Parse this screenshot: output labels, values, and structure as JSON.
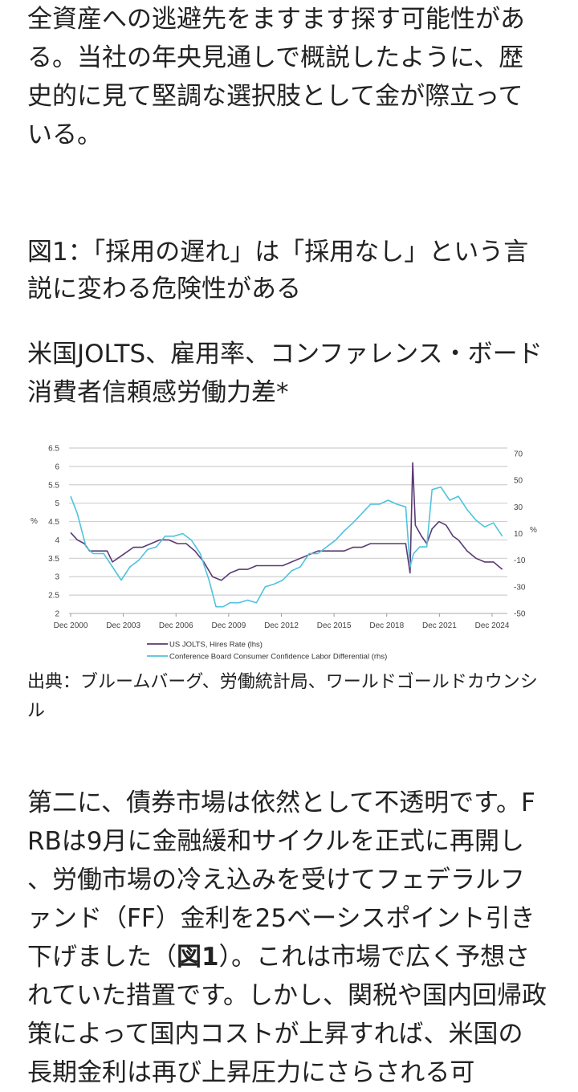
{
  "article": {
    "paragraph1": "全資産への逃避先をますます探す可能性がある。当社の年央見通しで概説したように、歴史的に見て堅調な選択肢として金が際立っている。",
    "figure_label": "図1",
    "figure_title": "：「採用の遅れ」は「採用なし」という言説に変わる危険性がある",
    "chart_subtitle": "米国JOLTS、雇用率、コンファレンス・ボード消費者信頼感労働力差*",
    "source": "出典：ブルームバーグ、労働統計局、ワールドゴールドカウンシル",
    "paragraph2_a": "第二に、債券市場は依然として不透明です。FRBは9月に金融緩和サイクルを正式に再開し、労働市場の冷え込みを受けてフェデラルファンド（FF）金利を25ベーシスポイント引き下げました（",
    "paragraph2_bold": "図1",
    "paragraph2_b": "）。これは市場で広く予想されていた措置です。しかし、関税や国内回帰政策によって国内コストが上昇すれば、米国の長期金利は再び上昇圧力にさらされる可"
  },
  "chart_data": {
    "type": "line",
    "title": "",
    "ylabel_left": "%",
    "ylabel_right": "%",
    "ylim_left": [
      2,
      6.5
    ],
    "ylim_right": [
      -50,
      70
    ],
    "yticks_left": [
      "6.5",
      "6",
      "5.5",
      "5",
      "4.5",
      "4",
      "3.5",
      "3",
      "2.5",
      "2"
    ],
    "yticks_left_values": [
      6.5,
      6,
      5.5,
      5,
      4.5,
      4,
      3.5,
      3,
      2.5,
      2
    ],
    "yticks_right": [
      "70",
      "50",
      "30",
      "10",
      "-10",
      "-30",
      "-50"
    ],
    "yticks_right_values": [
      70,
      50,
      30,
      10,
      -10,
      -30,
      -50
    ],
    "xticks": [
      "Dec 2000",
      "Dec 2003",
      "Dec 2006",
      "Dec 2009",
      "Dec 2012",
      "Dec 2015",
      "Dec 2018",
      "Dec 2021",
      "Dec 2024"
    ],
    "xticks_values": [
      2000.92,
      2003.92,
      2006.92,
      2009.92,
      2012.92,
      2015.92,
      2018.92,
      2021.92,
      2024.92
    ],
    "xlim": [
      2000.92,
      2025.6
    ],
    "grid": true,
    "legend_position": "bottom",
    "series": [
      {
        "name": "US JOLTS, Hires Rate (lhs)",
        "axis": "left",
        "color": "#5b3a73",
        "x": [
          2000.92,
          2001.3,
          2001.7,
          2002.0,
          2002.5,
          2003.0,
          2003.3,
          2003.9,
          2004.5,
          2005.0,
          2005.5,
          2006.0,
          2006.5,
          2007.0,
          2007.5,
          2008.0,
          2008.5,
          2009.0,
          2009.5,
          2010.0,
          2010.5,
          2011.0,
          2011.5,
          2012.0,
          2012.5,
          2013.0,
          2013.5,
          2014.0,
          2014.5,
          2015.0,
          2015.5,
          2016.0,
          2016.5,
          2017.0,
          2017.5,
          2018.0,
          2018.5,
          2019.0,
          2019.5,
          2020.0,
          2020.25,
          2020.4,
          2020.55,
          2020.9,
          2021.2,
          2021.5,
          2021.9,
          2022.3,
          2022.7,
          2023.0,
          2023.5,
          2024.0,
          2024.5,
          2025.0,
          2025.5
        ],
        "values": [
          4.2,
          4.0,
          3.9,
          3.7,
          3.7,
          3.7,
          3.4,
          3.6,
          3.8,
          3.8,
          3.9,
          4.0,
          4.0,
          3.9,
          3.9,
          3.7,
          3.4,
          3.0,
          2.9,
          3.1,
          3.2,
          3.2,
          3.3,
          3.3,
          3.3,
          3.3,
          3.4,
          3.5,
          3.6,
          3.7,
          3.7,
          3.7,
          3.7,
          3.8,
          3.8,
          3.9,
          3.9,
          3.9,
          3.9,
          3.9,
          3.1,
          6.1,
          4.4,
          4.1,
          3.9,
          4.3,
          4.5,
          4.4,
          4.1,
          4.0,
          3.7,
          3.5,
          3.4,
          3.4,
          3.2
        ]
      },
      {
        "name": "Conference Board Consumer Confidence Labor Differential (rhs)",
        "axis": "right",
        "color": "#4fc3dc",
        "x": [
          2000.92,
          2001.3,
          2001.8,
          2002.2,
          2002.8,
          2003.3,
          2003.8,
          2004.3,
          2004.8,
          2005.3,
          2005.8,
          2006.3,
          2006.8,
          2007.3,
          2007.8,
          2008.3,
          2008.8,
          2009.2,
          2009.6,
          2010.0,
          2010.5,
          2011.0,
          2011.5,
          2012.0,
          2012.5,
          2013.0,
          2013.5,
          2014.0,
          2014.5,
          2015.0,
          2015.5,
          2016.0,
          2016.5,
          2017.0,
          2017.5,
          2018.0,
          2018.5,
          2019.0,
          2019.5,
          2020.0,
          2020.25,
          2020.45,
          2020.8,
          2021.2,
          2021.5,
          2022.0,
          2022.5,
          2023.0,
          2023.5,
          2024.0,
          2024.5,
          2025.0,
          2025.5
        ],
        "values": [
          38,
          25,
          0,
          -5,
          -5,
          -15,
          -25,
          -15,
          -10,
          -2,
          0,
          8,
          8,
          10,
          5,
          -5,
          -25,
          -45,
          -45,
          -42,
          -42,
          -40,
          -42,
          -30,
          -28,
          -25,
          -18,
          -15,
          -5,
          -5,
          0,
          5,
          12,
          18,
          25,
          32,
          32,
          35,
          32,
          30,
          -15,
          -5,
          0,
          0,
          43,
          45,
          35,
          38,
          28,
          20,
          15,
          18,
          8
        ]
      }
    ]
  }
}
